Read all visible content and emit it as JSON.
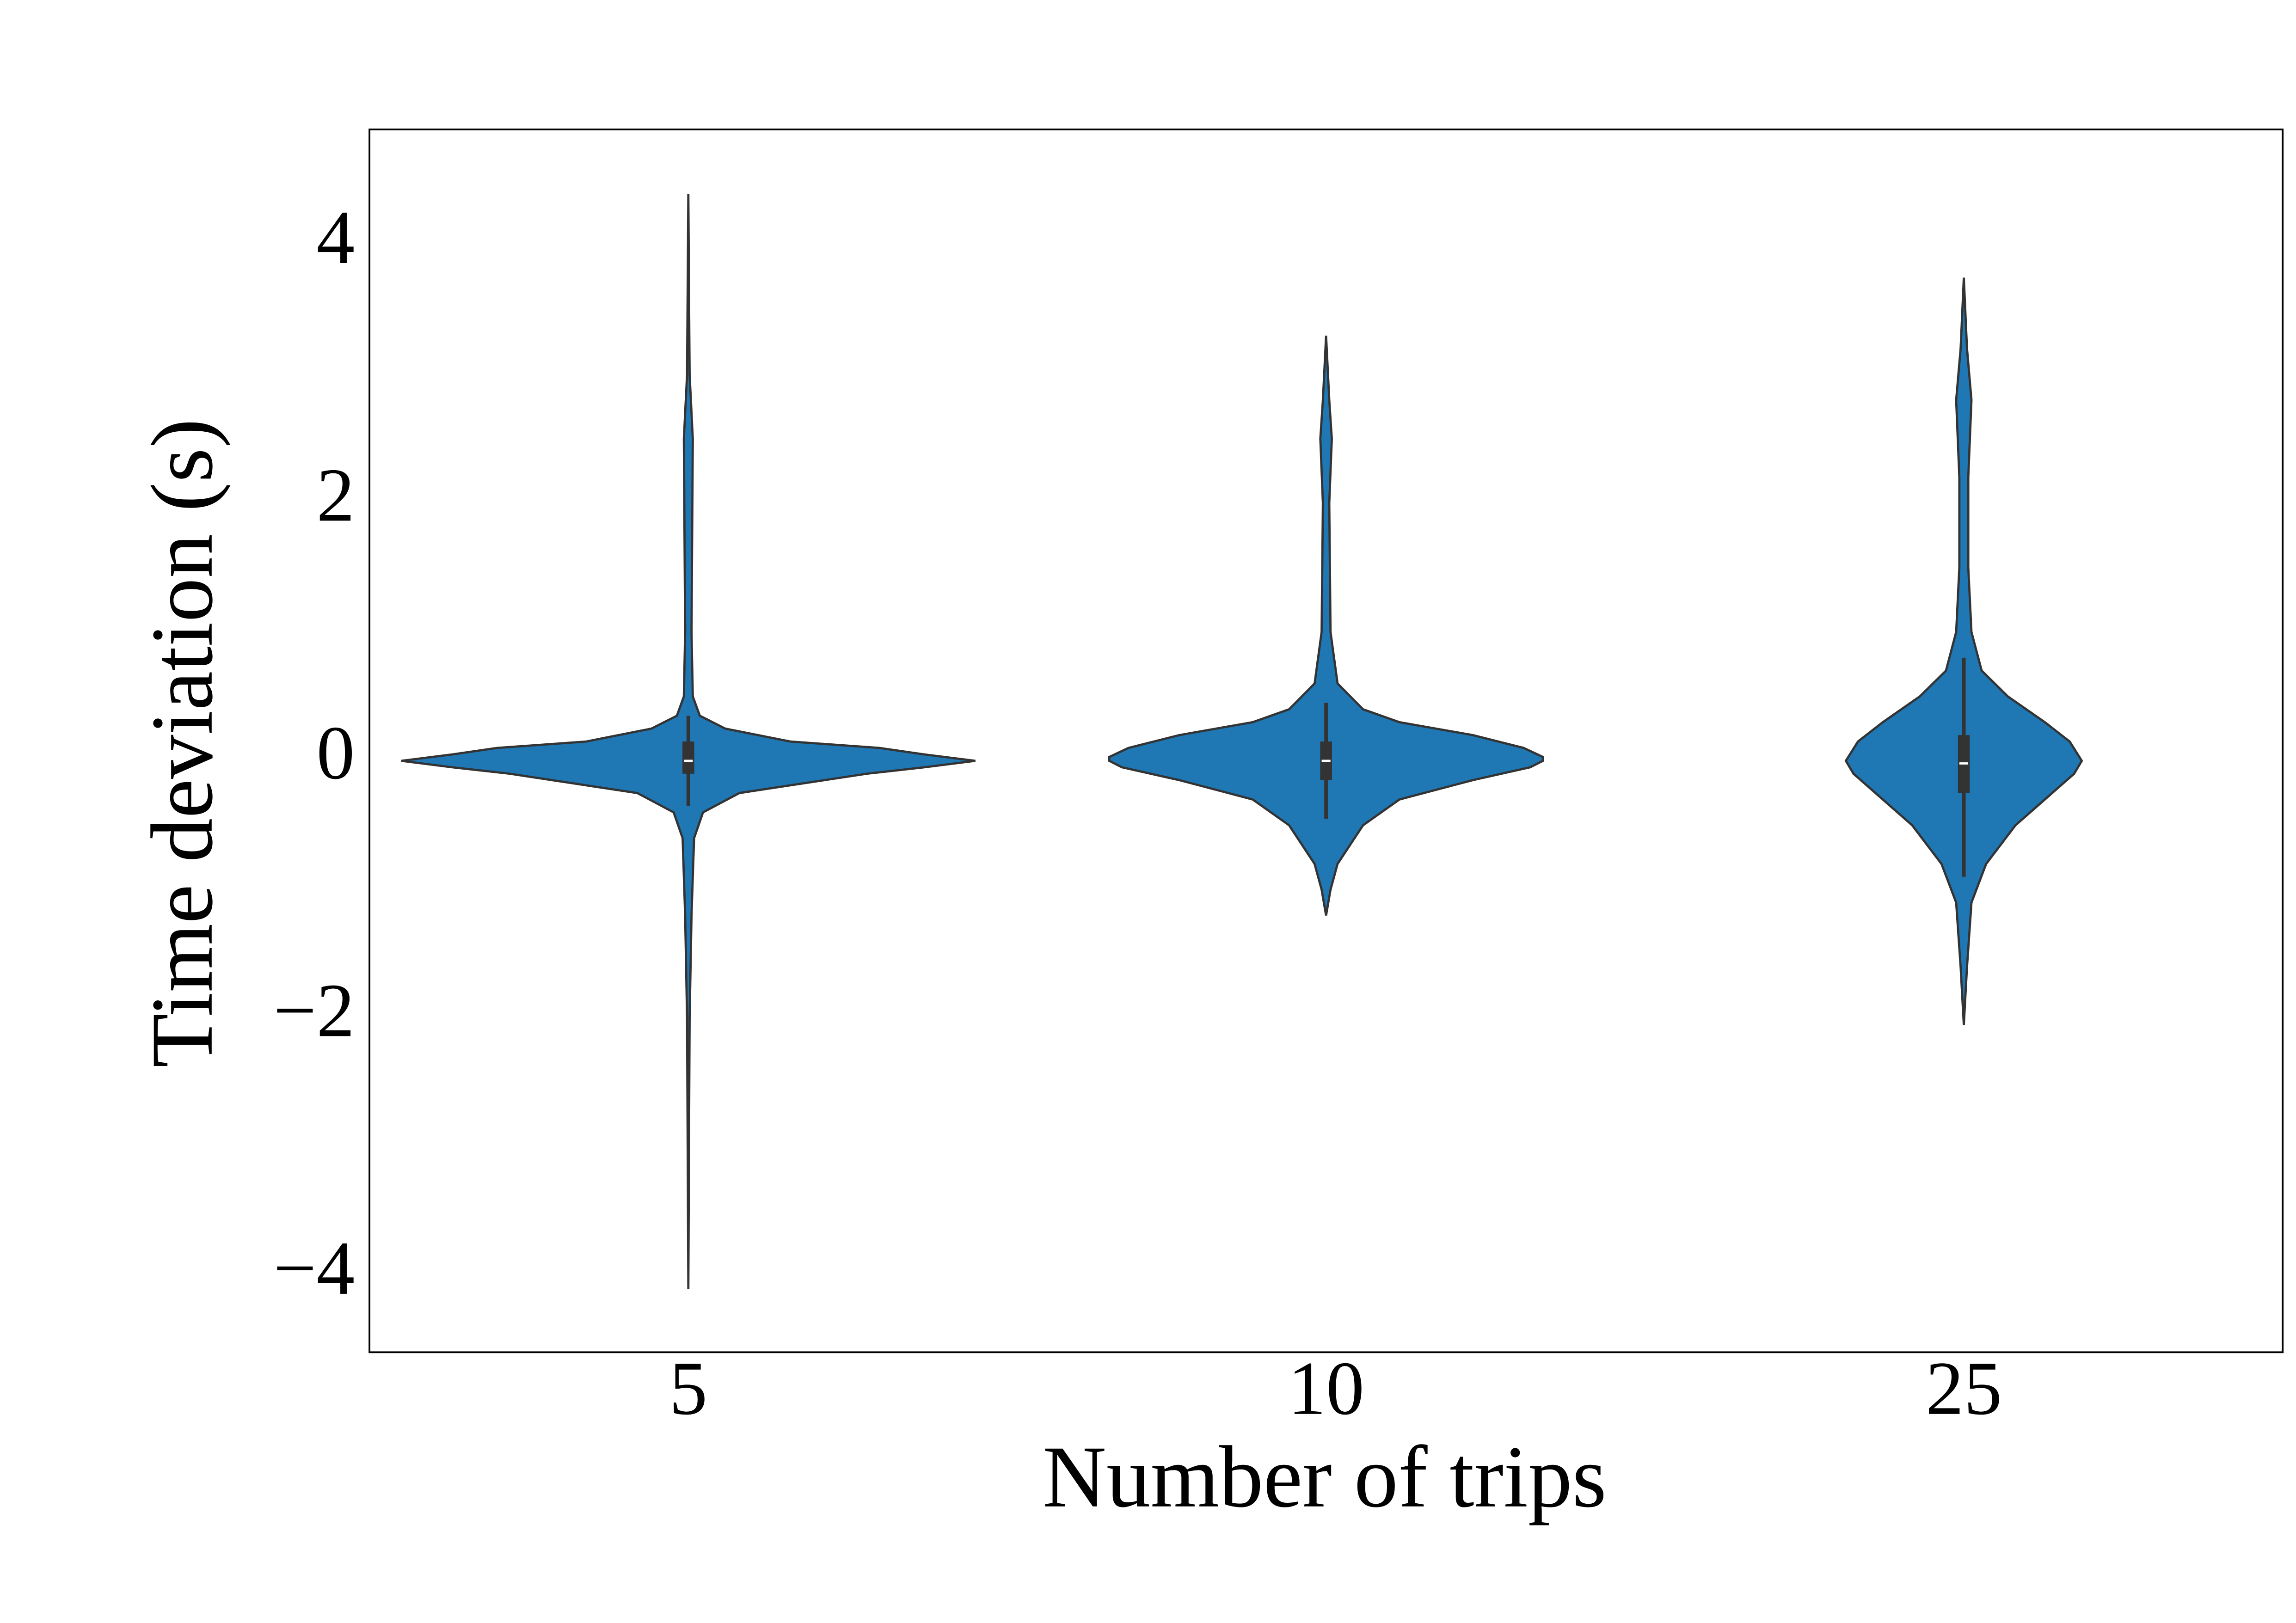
{
  "chart_data": {
    "type": "violin",
    "x_label": "Number of trips",
    "y_label": "Time deviation (s)",
    "categories": [
      "5",
      "10",
      "25"
    ],
    "color": "#1f77b4",
    "ylim": [
      -4.59,
      4.9
    ],
    "yticks": [
      {
        "value": -4,
        "label": "−4"
      },
      {
        "value": -2,
        "label": "−2"
      },
      0,
      2,
      4
    ],
    "series": [
      {
        "profile_y": [
          4.4,
          3,
          2.5,
          1,
          0.5,
          0.35,
          0.25,
          0.15,
          0.1,
          0.05,
          0,
          -0.05,
          -0.1,
          -0.25,
          -0.4,
          -0.6,
          -1.2,
          -2,
          -4.1
        ],
        "profile_width": [
          0,
          0.002,
          0.007,
          0.005,
          0.007,
          0.018,
          0.058,
          0.16,
          0.3,
          0.37,
          0.45,
          0.37,
          0.28,
          0.08,
          0.023,
          0.009,
          0.005,
          0.002,
          0
        ],
        "whisker_low": -0.35,
        "q1": -0.1,
        "median": 0,
        "q3": 0.15,
        "whisker_high": 0.35
      },
      {
        "profile_y": [
          3.3,
          2.8,
          2.5,
          2,
          1,
          0.6,
          0.4,
          0.3,
          0.2,
          0.1,
          0.03,
          0,
          -0.05,
          -0.15,
          -0.3,
          -0.5,
          -0.8,
          -1,
          -1.2
        ],
        "profile_width": [
          0,
          0.005,
          0.009,
          0.005,
          0.007,
          0.018,
          0.058,
          0.115,
          0.23,
          0.31,
          0.34,
          0.34,
          0.32,
          0.23,
          0.115,
          0.058,
          0.018,
          0.007,
          0
        ],
        "whisker_low": -0.45,
        "q1": -0.15,
        "median": 0,
        "q3": 0.15,
        "whisker_high": 0.45
      },
      {
        "profile_y": [
          3.75,
          3.2,
          2.8,
          2.2,
          1.5,
          1,
          0.7,
          0.5,
          0.3,
          0.15,
          0,
          -0.1,
          -0.3,
          -0.5,
          -0.8,
          -1.1,
          -1.6,
          -2.05
        ],
        "profile_width": [
          0,
          0.005,
          0.012,
          0.007,
          0.007,
          0.012,
          0.028,
          0.069,
          0.127,
          0.166,
          0.185,
          0.173,
          0.127,
          0.081,
          0.035,
          0.012,
          0.005,
          0
        ],
        "whisker_low": -0.9,
        "q1": -0.25,
        "median": -0.02,
        "q3": 0.2,
        "whisker_high": 0.8
      }
    ]
  }
}
